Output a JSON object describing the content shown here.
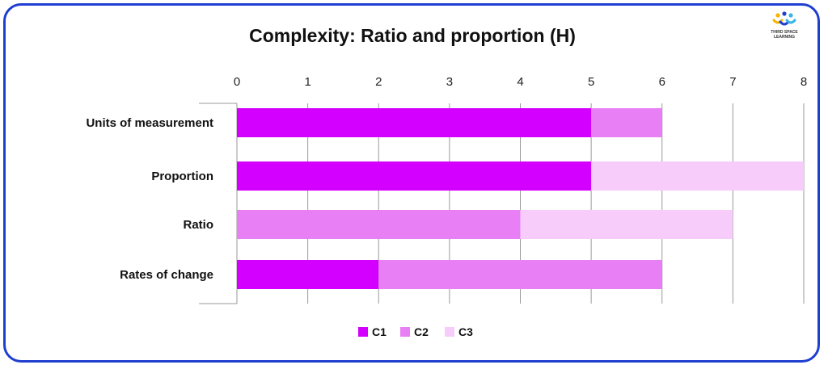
{
  "chart_data": {
    "type": "bar",
    "orientation": "horizontal",
    "stacked": true,
    "title": "Complexity: Ratio and proportion (H)",
    "categories": [
      "Units of measurement",
      "Proportion",
      "Ratio",
      "Rates of change"
    ],
    "series": [
      {
        "name": "C1",
        "color": "#d400ff",
        "values": [
          5,
          5,
          0,
          2
        ]
      },
      {
        "name": "C2",
        "color": "#e97ff5",
        "values": [
          1,
          0,
          4,
          4
        ]
      },
      {
        "name": "C3",
        "color": "#f7ccfb",
        "values": [
          0,
          3,
          3,
          0
        ]
      }
    ],
    "xlim": [
      0,
      8
    ],
    "xticks": [
      0,
      1,
      2,
      3,
      4,
      5,
      6,
      7,
      8
    ],
    "xaxis_position": "top",
    "grid": true,
    "legend_position": "bottom-center"
  },
  "logo": {
    "text_line1": "THIRD SPACE",
    "text_line2": "LEARNING",
    "colors": [
      "#f5b400",
      "#1f3fd1",
      "#37b3e5"
    ]
  }
}
